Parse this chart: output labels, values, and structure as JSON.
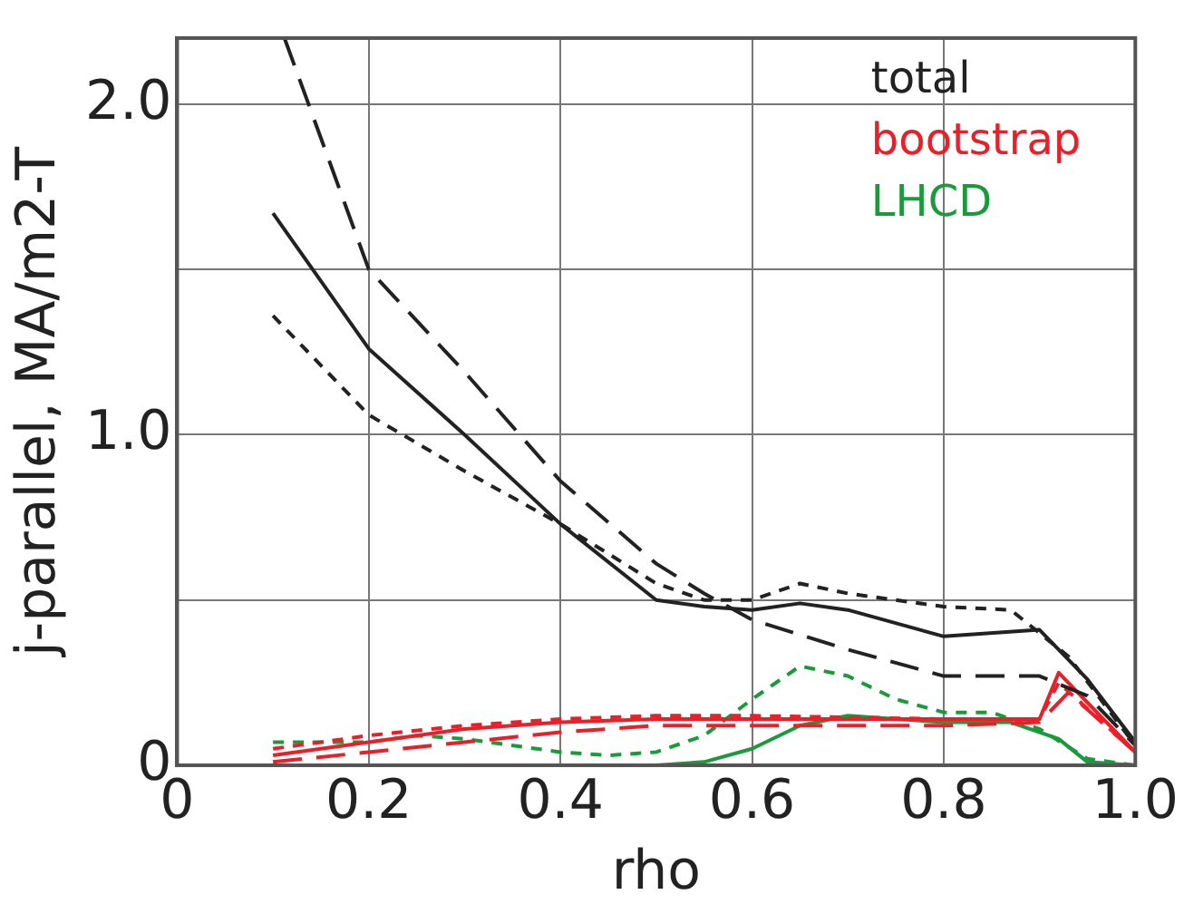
{
  "chart_data": {
    "type": "line",
    "xlabel": "rho",
    "ylabel": "j-parallel, MA/m2-T",
    "xlim": [
      0,
      1.0
    ],
    "ylim": [
      0,
      2.2
    ],
    "xticks": [
      0,
      0.2,
      0.4,
      0.6,
      0.8,
      {
        "value": 1.0,
        "label": "1.0"
      }
    ],
    "yticks": [
      0,
      {
        "value": 0.5,
        "label": null
      },
      {
        "value": 1.0,
        "label": "1.0"
      },
      {
        "value": 1.5,
        "label": null
      },
      {
        "value": 2.0,
        "label": "2.0"
      }
    ],
    "grid": true,
    "legend": "top right",
    "marker": "none",
    "series": [
      {
        "name": "total",
        "color": "#222222",
        "line_style": "solid",
        "x": [
          0.1,
          0.2,
          0.3,
          0.4,
          0.5,
          0.55,
          0.6,
          0.65,
          0.7,
          0.8,
          0.9,
          0.95,
          1.0
        ],
        "values": [
          1.67,
          1.26,
          1.0,
          0.73,
          0.5,
          0.48,
          0.47,
          0.49,
          0.47,
          0.39,
          0.41,
          0.26,
          0.07
        ]
      },
      {
        "color": "#222222",
        "line_style": "dashed",
        "x": [
          0.112,
          0.2,
          0.3,
          0.4,
          0.5,
          0.55,
          0.6,
          0.7,
          0.8,
          0.9,
          0.95,
          1.0
        ],
        "values": [
          2.2,
          1.5,
          1.19,
          0.86,
          0.61,
          0.52,
          0.44,
          0.35,
          0.27,
          0.27,
          0.21,
          0.06
        ]
      },
      {
        "color": "#222222",
        "line_style": "dotted",
        "x": [
          0.1,
          0.2,
          0.3,
          0.4,
          0.5,
          0.55,
          0.6,
          0.65,
          0.7,
          0.8,
          0.87,
          0.93,
          1.0
        ],
        "values": [
          1.36,
          1.06,
          0.89,
          0.73,
          0.55,
          0.5,
          0.5,
          0.55,
          0.52,
          0.48,
          0.47,
          0.33,
          0.06
        ]
      },
      {
        "name": "bootstrap",
        "color": "#e8202a",
        "line_style": "solid",
        "x": [
          0.1,
          0.2,
          0.3,
          0.4,
          0.5,
          0.6,
          0.8,
          0.9,
          0.92,
          0.95,
          1.0
        ],
        "values": [
          0.03,
          0.07,
          0.11,
          0.13,
          0.14,
          0.14,
          0.14,
          0.14,
          0.28,
          0.19,
          0.04
        ]
      },
      {
        "color": "#e8202a",
        "line_style": "dotted",
        "x": [
          0.1,
          0.2,
          0.3,
          0.4,
          0.5,
          0.6,
          0.8,
          0.9,
          0.92,
          1.0
        ],
        "values": [
          0.05,
          0.09,
          0.12,
          0.14,
          0.15,
          0.15,
          0.14,
          0.14,
          0.25,
          0.04
        ]
      },
      {
        "color": "#e8202a",
        "line_style": "dashed",
        "x": [
          0.1,
          0.2,
          0.3,
          0.4,
          0.5,
          0.6,
          0.7,
          0.8,
          0.9,
          0.93,
          1.0
        ],
        "values": [
          0.01,
          0.04,
          0.07,
          0.1,
          0.12,
          0.12,
          0.12,
          0.12,
          0.13,
          0.22,
          0.04
        ]
      },
      {
        "name": "LHCD",
        "color": "#1a9a3a",
        "line_style": "solid",
        "x": [
          0.1,
          0.5,
          0.55,
          0.6,
          0.65,
          0.7,
          0.8,
          0.87,
          0.92,
          0.95,
          1.0
        ],
        "values": [
          0.0,
          0.0,
          0.01,
          0.05,
          0.12,
          0.15,
          0.13,
          0.13,
          0.08,
          0.01,
          0.0
        ]
      },
      {
        "color": "#1a9a3a",
        "line_style": "dotted",
        "x": [
          0.1,
          0.2,
          0.25,
          0.3,
          0.4,
          0.45,
          0.5,
          0.55,
          0.6,
          0.65,
          0.7,
          0.75,
          0.8,
          0.85,
          0.9,
          0.95,
          1.0
        ],
        "values": [
          0.07,
          0.07,
          0.09,
          0.08,
          0.04,
          0.03,
          0.04,
          0.09,
          0.2,
          0.3,
          0.27,
          0.2,
          0.16,
          0.16,
          0.11,
          0.02,
          0.0
        ]
      }
    ]
  }
}
